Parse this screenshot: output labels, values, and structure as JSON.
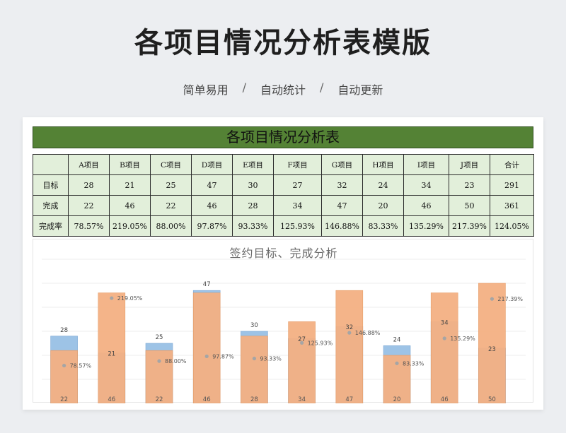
{
  "page": {
    "title": "各项目情况分析表模版",
    "tags": [
      "简单易用",
      "自动统计",
      "自动更新"
    ],
    "separator": "/"
  },
  "sheet": {
    "title": "各项目情况分析表",
    "header_color": "#548235",
    "table_bg": "#e2efda",
    "columns": [
      "",
      "A项目",
      "B项目",
      "C项目",
      "D项目",
      "E项目",
      "F项目",
      "G项目",
      "H项目",
      "I项目",
      "J项目",
      "合计"
    ],
    "rows": [
      {
        "label": "目标",
        "values": [
          "28",
          "21",
          "25",
          "47",
          "30",
          "27",
          "32",
          "24",
          "34",
          "23",
          "291"
        ]
      },
      {
        "label": "完成",
        "values": [
          "22",
          "46",
          "22",
          "46",
          "28",
          "34",
          "47",
          "20",
          "46",
          "50",
          "361"
        ]
      },
      {
        "label": "完成率",
        "values": [
          "78.57%",
          "219.05%",
          "88.00%",
          "97.87%",
          "93.33%",
          "125.93%",
          "146.88%",
          "83.33%",
          "135.29%",
          "217.39%",
          "124.05%"
        ]
      }
    ]
  },
  "chart_data": {
    "type": "bar",
    "title": "签约目标、完成分析",
    "categories": [
      "A项目",
      "B项目",
      "C项目",
      "D项目",
      "E项目",
      "F项目",
      "G项目",
      "H项目",
      "I项目",
      "J项目"
    ],
    "series": [
      {
        "name": "目标",
        "values": [
          28,
          21,
          25,
          47,
          30,
          27,
          32,
          24,
          34,
          23
        ],
        "color": "#9dc3e6"
      },
      {
        "name": "完成",
        "values": [
          22,
          46,
          22,
          46,
          28,
          34,
          47,
          20,
          46,
          50
        ],
        "color": "#f4b183"
      },
      {
        "name": "完成率",
        "values": [
          "78.57%",
          "219.05%",
          "88.00%",
          "97.87%",
          "93.33%",
          "125.93%",
          "146.88%",
          "83.33%",
          "135.29%",
          "217.39%"
        ],
        "color": "#a5a5a5"
      }
    ],
    "rate_values": [
      78.57,
      219.05,
      88.0,
      97.87,
      93.33,
      125.93,
      146.88,
      83.33,
      135.29,
      217.39
    ],
    "ylim": [
      0,
      60
    ],
    "rate_ylim": [
      0,
      300
    ],
    "grid": true,
    "legend": "none"
  }
}
